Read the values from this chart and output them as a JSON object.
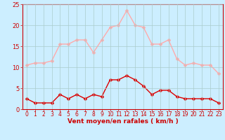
{
  "x": [
    0,
    1,
    2,
    3,
    4,
    5,
    6,
    7,
    8,
    9,
    10,
    11,
    12,
    13,
    14,
    15,
    16,
    17,
    18,
    19,
    20,
    21,
    22,
    23
  ],
  "wind_avg": [
    2.5,
    1.5,
    1.5,
    1.5,
    3.5,
    2.5,
    3.5,
    2.5,
    3.5,
    3.0,
    7.0,
    7.0,
    8.0,
    7.0,
    5.5,
    3.5,
    4.5,
    4.5,
    3.0,
    2.5,
    2.5,
    2.5,
    2.5,
    1.5
  ],
  "wind_gust": [
    10.5,
    11.0,
    11.0,
    11.5,
    15.5,
    15.5,
    16.5,
    16.5,
    13.5,
    16.5,
    19.5,
    20.0,
    23.5,
    20.0,
    19.5,
    15.5,
    15.5,
    16.5,
    12.0,
    10.5,
    11.0,
    10.5,
    10.5,
    8.5
  ],
  "color_avg": "#dd0000",
  "color_gust": "#ffaaaa",
  "bg_color": "#cceeff",
  "grid_color": "#aacccc",
  "xlabel": "Vent moyen/en rafales ( km/h )",
  "xlabel_color": "#cc0000",
  "tick_color": "#cc0000",
  "ylim": [
    0,
    25
  ],
  "yticks": [
    0,
    5,
    10,
    15,
    20,
    25
  ],
  "marker": "D",
  "markersize": 2.5,
  "linewidth": 1.0
}
